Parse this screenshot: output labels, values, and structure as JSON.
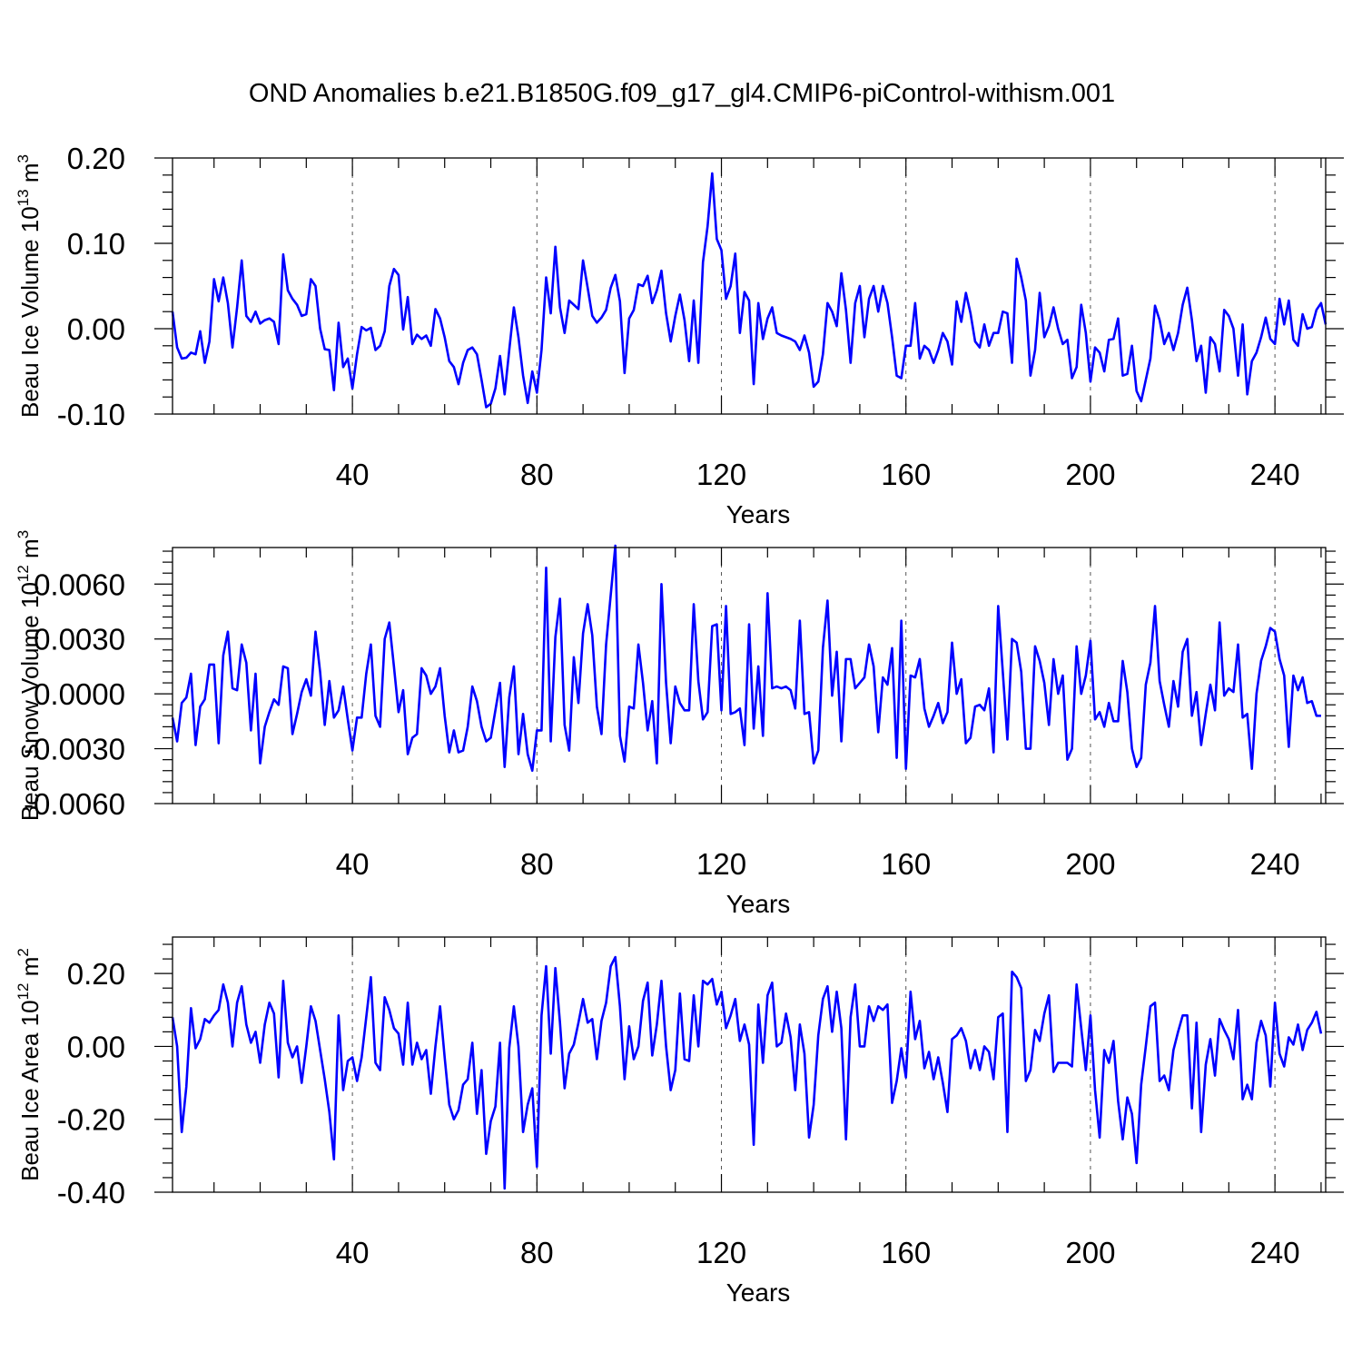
{
  "title": "OND Anomalies b.e21.B1850G.f09_g17_gl4.CMIP6-piControl-withism.001",
  "colors": {
    "line": "#0000ff",
    "axes": "#000000",
    "grid": "#555555"
  },
  "chart_data": [
    {
      "type": "line",
      "ylabel_main": "Beau Ice Volume 10",
      "ylabel_sup": "13",
      "ylabel_unit": " m",
      "ylabel_unit_sup": "3",
      "xlabel": "Years",
      "xlim": [
        1,
        251
      ],
      "ylim": [
        -0.1,
        0.2
      ],
      "xticks": [
        40,
        80,
        120,
        160,
        200,
        240
      ],
      "xtick_labels": [
        "40",
        "80",
        "120",
        "160",
        "200",
        "240"
      ],
      "yticks": [
        0.2,
        0.1,
        0.0,
        -0.1
      ],
      "ytick_labels": [
        "0.20",
        "0.10",
        "0.00",
        "-0.10"
      ],
      "grid_x": [
        40,
        80,
        120,
        160,
        200,
        240
      ],
      "x_start": 1,
      "values": [
        0.02,
        -0.022,
        -0.035,
        -0.034,
        -0.028,
        -0.03,
        -0.003,
        -0.04,
        -0.015,
        0.058,
        0.032,
        0.06,
        0.03,
        -0.022,
        0.025,
        0.08,
        0.015,
        0.008,
        0.02,
        0.006,
        0.01,
        0.012,
        0.008,
        -0.018,
        0.087,
        0.045,
        0.035,
        0.028,
        0.015,
        0.017,
        0.058,
        0.05,
        0.0,
        -0.024,
        -0.025,
        -0.072,
        0.007,
        -0.045,
        -0.035,
        -0.07,
        -0.03,
        0.002,
        -0.002,
        0.001,
        -0.025,
        -0.02,
        -0.003,
        0.05,
        0.07,
        0.063,
        -0.001,
        0.037,
        -0.018,
        -0.007,
        -0.012,
        -0.008,
        -0.02,
        0.023,
        0.012,
        -0.01,
        -0.038,
        -0.045,
        -0.065,
        -0.04,
        -0.025,
        -0.022,
        -0.03,
        -0.06,
        -0.092,
        -0.088,
        -0.07,
        -0.032,
        -0.077,
        -0.025,
        0.025,
        -0.01,
        -0.055,
        -0.087,
        -0.05,
        -0.075,
        -0.025,
        0.06,
        0.018,
        0.096,
        0.025,
        -0.005,
        0.033,
        0.028,
        0.023,
        0.08,
        0.048,
        0.015,
        0.007,
        0.013,
        0.022,
        0.048,
        0.063,
        0.032,
        -0.052,
        0.012,
        0.022,
        0.052,
        0.05,
        0.062,
        0.03,
        0.045,
        0.068,
        0.018,
        -0.015,
        0.015,
        0.04,
        0.01,
        -0.038,
        0.033,
        -0.04,
        0.078,
        0.12,
        0.182,
        0.105,
        0.092,
        0.035,
        0.05,
        0.088,
        -0.005,
        0.043,
        0.033,
        -0.065,
        0.03,
        -0.012,
        0.012,
        0.025,
        -0.005,
        -0.008,
        -0.01,
        -0.012,
        -0.015,
        -0.025,
        -0.008,
        -0.028,
        -0.068,
        -0.062,
        -0.03,
        0.03,
        0.02,
        0.003,
        0.065,
        0.022,
        -0.04,
        0.03,
        0.05,
        -0.01,
        0.035,
        0.05,
        0.02,
        0.05,
        0.03,
        -0.01,
        -0.055,
        -0.058,
        -0.02,
        -0.02,
        0.03,
        -0.035,
        -0.02,
        -0.025,
        -0.04,
        -0.025,
        -0.005,
        -0.015,
        -0.042,
        0.032,
        0.008,
        0.042,
        0.018,
        -0.015,
        -0.022,
        0.005,
        -0.02,
        -0.005,
        -0.005,
        0.02,
        0.018,
        -0.04,
        0.082,
        0.06,
        0.033,
        -0.055,
        -0.025,
        0.042,
        -0.01,
        0.003,
        0.025,
        0.0,
        -0.018,
        -0.013,
        -0.058,
        -0.045,
        0.028,
        -0.005,
        -0.062,
        -0.022,
        -0.028,
        -0.05,
        -0.013,
        -0.012,
        0.012,
        -0.055,
        -0.053,
        -0.02,
        -0.073,
        -0.085,
        -0.06,
        -0.035,
        0.027,
        0.01,
        -0.018,
        -0.005,
        -0.025,
        -0.005,
        0.028,
        0.048,
        0.01,
        -0.038,
        -0.02,
        -0.075,
        -0.01,
        -0.018,
        -0.05,
        0.022,
        0.015,
        0.0,
        -0.055,
        0.005,
        -0.077,
        -0.038,
        -0.028,
        -0.01,
        0.013,
        -0.012,
        -0.018,
        0.035,
        0.005,
        0.033,
        -0.013,
        -0.02,
        0.017,
        0.0,
        0.002,
        0.022,
        0.03,
        0.005
      ]
    },
    {
      "type": "line",
      "ylabel_main": "Beau Snow Volume 10",
      "ylabel_sup": "12",
      "ylabel_unit": " m",
      "ylabel_unit_sup": "3",
      "xlabel": "Years",
      "xlim": [
        1,
        251
      ],
      "ylim": [
        -0.006,
        0.008
      ],
      "xticks": [
        40,
        80,
        120,
        160,
        200,
        240
      ],
      "xtick_labels": [
        "40",
        "80",
        "120",
        "160",
        "200",
        "240"
      ],
      "yticks": [
        0.006,
        0.003,
        0.0,
        -0.003,
        -0.006
      ],
      "ytick_labels": [
        "0.0060",
        "0.0030",
        "0.0000",
        "-0.0030",
        "-0.0060"
      ],
      "grid_x": [
        40,
        80,
        120,
        160,
        200,
        240
      ],
      "x_start": 1,
      "values": [
        -0.0013,
        -0.0026,
        -0.0005,
        -0.0002,
        0.0011,
        -0.0028,
        -0.0007,
        -0.0003,
        0.0016,
        0.0016,
        -0.0027,
        0.0021,
        0.0034,
        0.0003,
        0.0002,
        0.0027,
        0.0017,
        -0.002,
        0.0011,
        -0.0038,
        -0.0018,
        -0.001,
        -0.0003,
        -0.0006,
        0.0015,
        0.0014,
        -0.0022,
        -0.0011,
        0.0001,
        0.0008,
        -0.0001,
        0.0034,
        0.0012,
        -0.0017,
        0.0007,
        -0.0013,
        -0.0009,
        0.0004,
        -0.0014,
        -0.0031,
        -0.0013,
        -0.0013,
        0.0011,
        0.0027,
        -0.0012,
        -0.0018,
        0.003,
        0.0039,
        0.0015,
        -0.001,
        0.0002,
        -0.0033,
        -0.0024,
        -0.0022,
        0.0014,
        0.001,
        0.0,
        0.0004,
        0.0014,
        -0.0012,
        -0.0032,
        -0.002,
        -0.0032,
        -0.0031,
        -0.0018,
        0.0004,
        -0.0004,
        -0.0018,
        -0.0026,
        -0.0024,
        -0.0009,
        0.0006,
        -0.004,
        -0.0002,
        0.0015,
        -0.0033,
        -0.0011,
        -0.0033,
        -0.0042,
        -0.002,
        -0.002,
        0.0069,
        -0.0026,
        0.0031,
        0.0052,
        -0.0017,
        -0.0031,
        0.002,
        -0.0005,
        0.0033,
        0.0049,
        0.0032,
        -0.0007,
        -0.0022,
        0.0027,
        0.0054,
        0.0081,
        -0.0023,
        -0.0037,
        -0.0007,
        -0.0008,
        0.0027,
        0.0006,
        -0.002,
        -0.0004,
        -0.0038,
        0.006,
        0.0006,
        -0.0027,
        0.0004,
        -0.0005,
        -0.0009,
        -0.0009,
        0.0049,
        0.0007,
        -0.0014,
        -0.001,
        0.0037,
        0.0038,
        -0.0009,
        0.0048,
        -0.0011,
        -0.001,
        -0.0008,
        -0.0028,
        0.0038,
        -0.0019,
        0.0015,
        -0.0023,
        0.0055,
        0.0003,
        0.0004,
        0.0003,
        0.0004,
        0.0002,
        -0.0008,
        0.004,
        -0.0011,
        -0.001,
        -0.0038,
        -0.0031,
        0.0025,
        0.0051,
        -0.0001,
        0.0023,
        -0.0026,
        0.0019,
        0.0019,
        0.0003,
        0.0006,
        0.0009,
        0.0027,
        0.0015,
        -0.0021,
        0.0009,
        0.0005,
        0.0025,
        -0.0035,
        0.004,
        -0.0041,
        0.001,
        0.0009,
        0.0019,
        -0.0008,
        -0.0018,
        -0.0012,
        -0.0005,
        -0.0016,
        -0.001,
        0.0028,
        0.0,
        0.0008,
        -0.0027,
        -0.0024,
        -0.0007,
        -0.0006,
        -0.0009,
        0.0003,
        -0.0032,
        0.0048,
        0.0012,
        -0.0025,
        0.003,
        0.0028,
        0.0012,
        -0.003,
        -0.003,
        0.0026,
        0.0018,
        0.0006,
        -0.0017,
        0.0019,
        0.0,
        0.001,
        -0.0036,
        -0.003,
        0.0026,
        0.0,
        0.001,
        0.0029,
        -0.0014,
        -0.001,
        -0.0018,
        -0.0005,
        -0.0015,
        -0.0015,
        0.0018,
        0.0001,
        -0.003,
        -0.004,
        -0.0035,
        0.0005,
        0.0017,
        0.0048,
        0.0007,
        -0.0006,
        -0.0018,
        0.0007,
        -0.0007,
        0.0023,
        0.003,
        -0.0012,
        0.0001,
        -0.0028,
        -0.0011,
        0.0005,
        -0.0009,
        0.0039,
        -0.0001,
        0.0003,
        0.0001,
        0.0027,
        -0.0013,
        -0.0011,
        -0.0041,
        0.0,
        0.0018,
        0.0026,
        0.0036,
        0.0034,
        0.0019,
        0.001,
        -0.0029,
        0.001,
        0.0002,
        0.0009,
        -0.0005,
        -0.0004,
        -0.0012,
        -0.0012
      ]
    },
    {
      "type": "line",
      "ylabel_main": "Beau Ice Area 10",
      "ylabel_sup": "12",
      "ylabel_unit": " m",
      "ylabel_unit_sup": "2",
      "xlabel": "Years",
      "xlim": [
        1,
        251
      ],
      "ylim": [
        -0.4,
        0.3
      ],
      "xticks": [
        40,
        80,
        120,
        160,
        200,
        240
      ],
      "xtick_labels": [
        "40",
        "80",
        "120",
        "160",
        "200",
        "240"
      ],
      "yticks": [
        0.2,
        0.0,
        -0.2,
        -0.4
      ],
      "ytick_labels": [
        "0.20",
        "0.00",
        "-0.20",
        "-0.40"
      ],
      "grid_x": [
        40,
        80,
        120,
        160,
        200,
        240
      ],
      "x_start": 1,
      "values": [
        0.08,
        0.0,
        -0.235,
        -0.11,
        0.105,
        -0.005,
        0.02,
        0.075,
        0.065,
        0.085,
        0.1,
        0.17,
        0.12,
        0.0,
        0.12,
        0.165,
        0.06,
        0.01,
        0.04,
        -0.045,
        0.06,
        0.12,
        0.09,
        -0.085,
        0.18,
        0.01,
        -0.03,
        0.0,
        -0.1,
        0.0,
        0.11,
        0.07,
        -0.01,
        -0.09,
        -0.18,
        -0.31,
        0.085,
        -0.12,
        -0.04,
        -0.03,
        -0.095,
        -0.03,
        0.08,
        0.19,
        -0.045,
        -0.065,
        0.135,
        0.1,
        0.05,
        0.035,
        -0.05,
        0.12,
        -0.05,
        0.01,
        -0.035,
        -0.01,
        -0.13,
        0.0,
        0.11,
        -0.03,
        -0.16,
        -0.2,
        -0.175,
        -0.105,
        -0.09,
        0.01,
        -0.185,
        -0.065,
        -0.295,
        -0.205,
        -0.165,
        0.01,
        -0.39,
        -0.005,
        0.11,
        0.0,
        -0.235,
        -0.16,
        -0.115,
        -0.33,
        0.085,
        0.22,
        -0.02,
        0.215,
        0.065,
        -0.115,
        -0.02,
        0.005,
        0.065,
        0.13,
        0.065,
        0.075,
        -0.035,
        0.07,
        0.12,
        0.22,
        0.245,
        0.11,
        -0.09,
        0.055,
        -0.035,
        0.0,
        0.125,
        0.175,
        -0.025,
        0.06,
        0.18,
        0.0,
        -0.12,
        -0.065,
        0.145,
        -0.035,
        -0.04,
        0.14,
        0.0,
        0.18,
        0.17,
        0.185,
        0.115,
        0.15,
        0.05,
        0.085,
        0.13,
        0.015,
        0.06,
        0.005,
        -0.27,
        0.115,
        -0.045,
        0.14,
        0.175,
        0.0,
        0.01,
        0.09,
        0.025,
        -0.12,
        0.06,
        -0.02,
        -0.25,
        -0.16,
        0.03,
        0.13,
        0.165,
        0.04,
        0.15,
        0.05,
        -0.255,
        0.08,
        0.17,
        0.0,
        0.0,
        0.11,
        0.07,
        0.11,
        0.1,
        0.115,
        -0.155,
        -0.095,
        -0.005,
        -0.085,
        0.15,
        0.02,
        0.07,
        -0.06,
        -0.015,
        -0.09,
        -0.03,
        -0.1,
        -0.18,
        0.02,
        0.03,
        0.05,
        0.015,
        -0.06,
        -0.01,
        -0.065,
        0.0,
        -0.015,
        -0.09,
        0.08,
        0.09,
        -0.235,
        0.205,
        0.19,
        0.16,
        -0.095,
        -0.065,
        0.045,
        0.015,
        0.09,
        0.14,
        -0.07,
        -0.045,
        -0.045,
        -0.045,
        -0.055,
        0.17,
        0.05,
        -0.065,
        0.085,
        -0.12,
        -0.25,
        -0.01,
        -0.045,
        0.015,
        -0.15,
        -0.255,
        -0.14,
        -0.185,
        -0.32,
        -0.105,
        0.0,
        0.11,
        0.12,
        -0.095,
        -0.08,
        -0.12,
        -0.01,
        0.04,
        0.085,
        0.085,
        -0.17,
        0.065,
        -0.235,
        -0.05,
        0.02,
        -0.08,
        0.075,
        0.045,
        0.02,
        -0.035,
        0.1,
        -0.145,
        -0.105,
        -0.145,
        0.01,
        0.07,
        0.03,
        -0.11,
        0.12,
        -0.02,
        -0.055,
        0.025,
        0.005,
        0.06,
        -0.01,
        0.045,
        0.065,
        0.095,
        0.035
      ]
    }
  ]
}
